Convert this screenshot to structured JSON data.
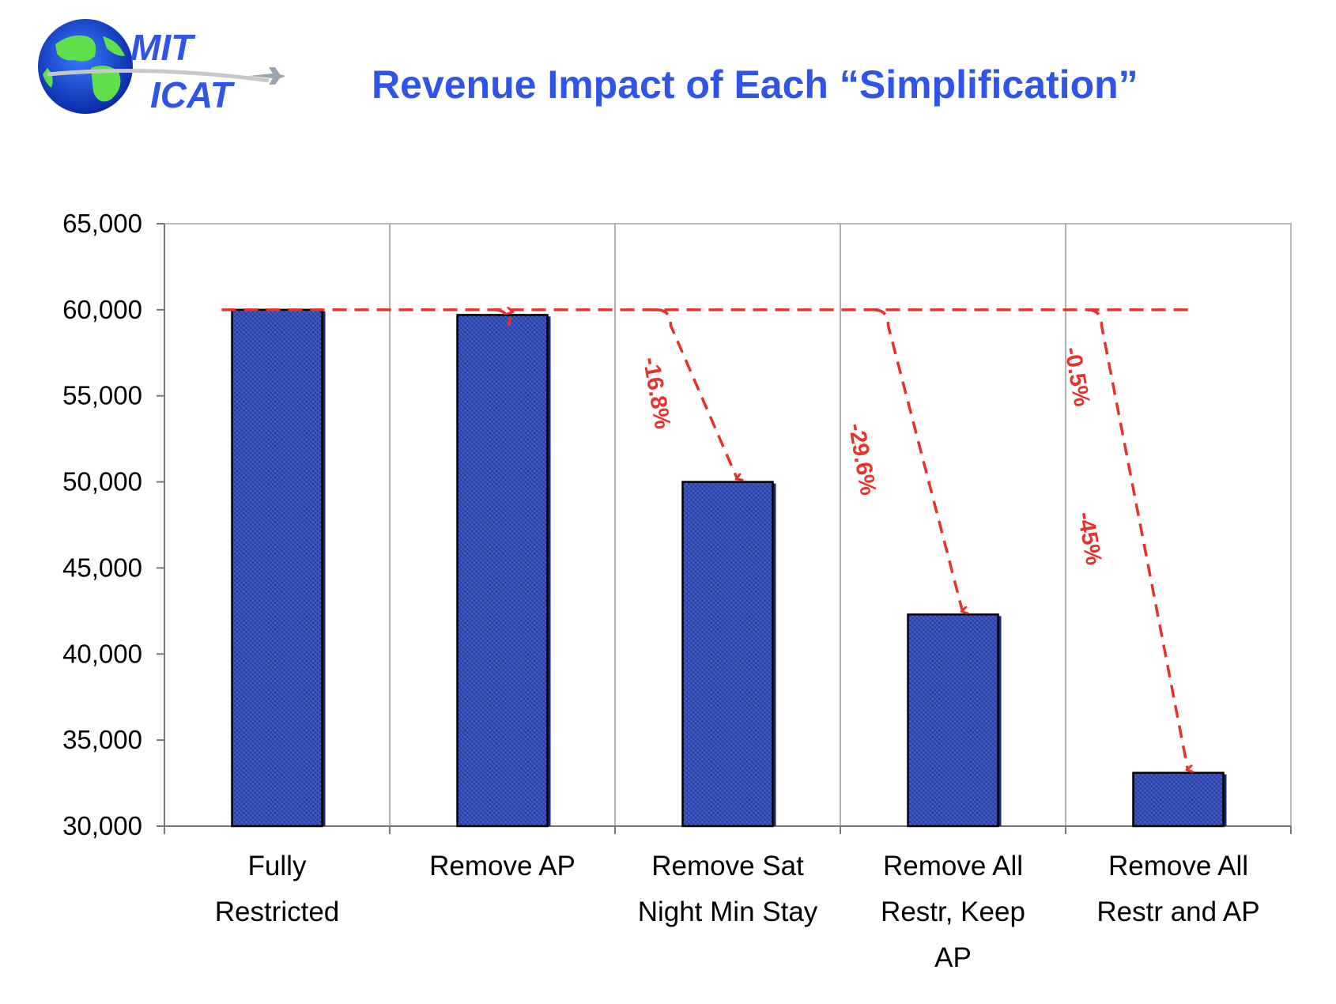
{
  "logo": {
    "line1": "MIT",
    "line2": "ICAT",
    "icon": "globe-airplane-icon"
  },
  "title": "Revenue Impact of Each “Simplification”",
  "colors": {
    "bar": "#3a5ce0",
    "bar_dark": "#141a3a",
    "arrow": "#e8312a",
    "title": "#2e54e8"
  },
  "chart_data": {
    "type": "bar",
    "categories": [
      [
        "Fully",
        "Restricted"
      ],
      [
        "Remove AP"
      ],
      [
        "Remove Sat",
        "Night Min Stay"
      ],
      [
        "Remove All",
        "Restr, Keep",
        "AP"
      ],
      [
        "Remove All",
        "Restr and AP"
      ]
    ],
    "values": [
      60000,
      59700,
      50000,
      42300,
      33100
    ],
    "ylim": [
      30000,
      65000
    ],
    "yticks": [
      "30,000",
      "35,000",
      "40,000",
      "45,000",
      "50,000",
      "55,000",
      "60,000",
      "65,000"
    ],
    "ytick_values": [
      30000,
      35000,
      40000,
      45000,
      50000,
      55000,
      60000,
      65000
    ],
    "reference_value": 60000,
    "annotations": [
      "-0.5%",
      "-16.8%",
      "-29.6%",
      "-45%"
    ],
    "grid": "vertical separators",
    "xlabel": "",
    "ylabel": ""
  }
}
